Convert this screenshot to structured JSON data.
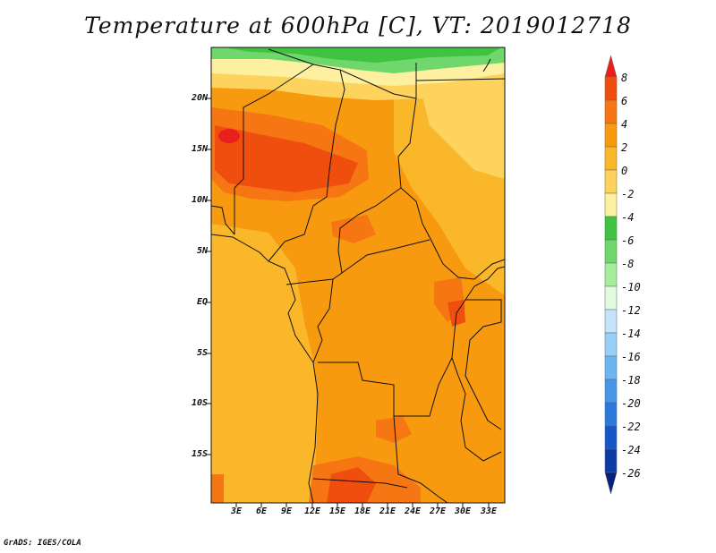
{
  "title": "Temperature at 600hPa [C], VT: 2019012718",
  "credit": "GrADS: IGES/COLA",
  "map": {
    "lat_labels": [
      "20N",
      "15N",
      "10N",
      "5N",
      "EQ",
      "5S",
      "10S",
      "15S"
    ],
    "lon_labels": [
      "3E",
      "6E",
      "9E",
      "12E",
      "15E",
      "18E",
      "21E",
      "24E",
      "27E",
      "30E",
      "33E"
    ]
  },
  "colorbar": {
    "labels": [
      "8",
      "6",
      "4",
      "2",
      "0",
      "-2",
      "-4",
      "-6",
      "-8",
      "-10",
      "-12",
      "-14",
      "-16",
      "-18",
      "-20",
      "-22",
      "-24",
      "-26"
    ],
    "colors": [
      "#e8201c",
      "#f04e0e",
      "#f57612",
      "#f79a10",
      "#fbb72a",
      "#fdd35e",
      "#fdf0a0",
      "#3fc341",
      "#6fd76b",
      "#a6ec9d",
      "#e2fbdf",
      "#c3e4fb",
      "#99cff7",
      "#6db5f0",
      "#4797e8",
      "#2b79dc",
      "#1656c6",
      "#0c3aa6",
      "#07217a"
    ]
  }
}
